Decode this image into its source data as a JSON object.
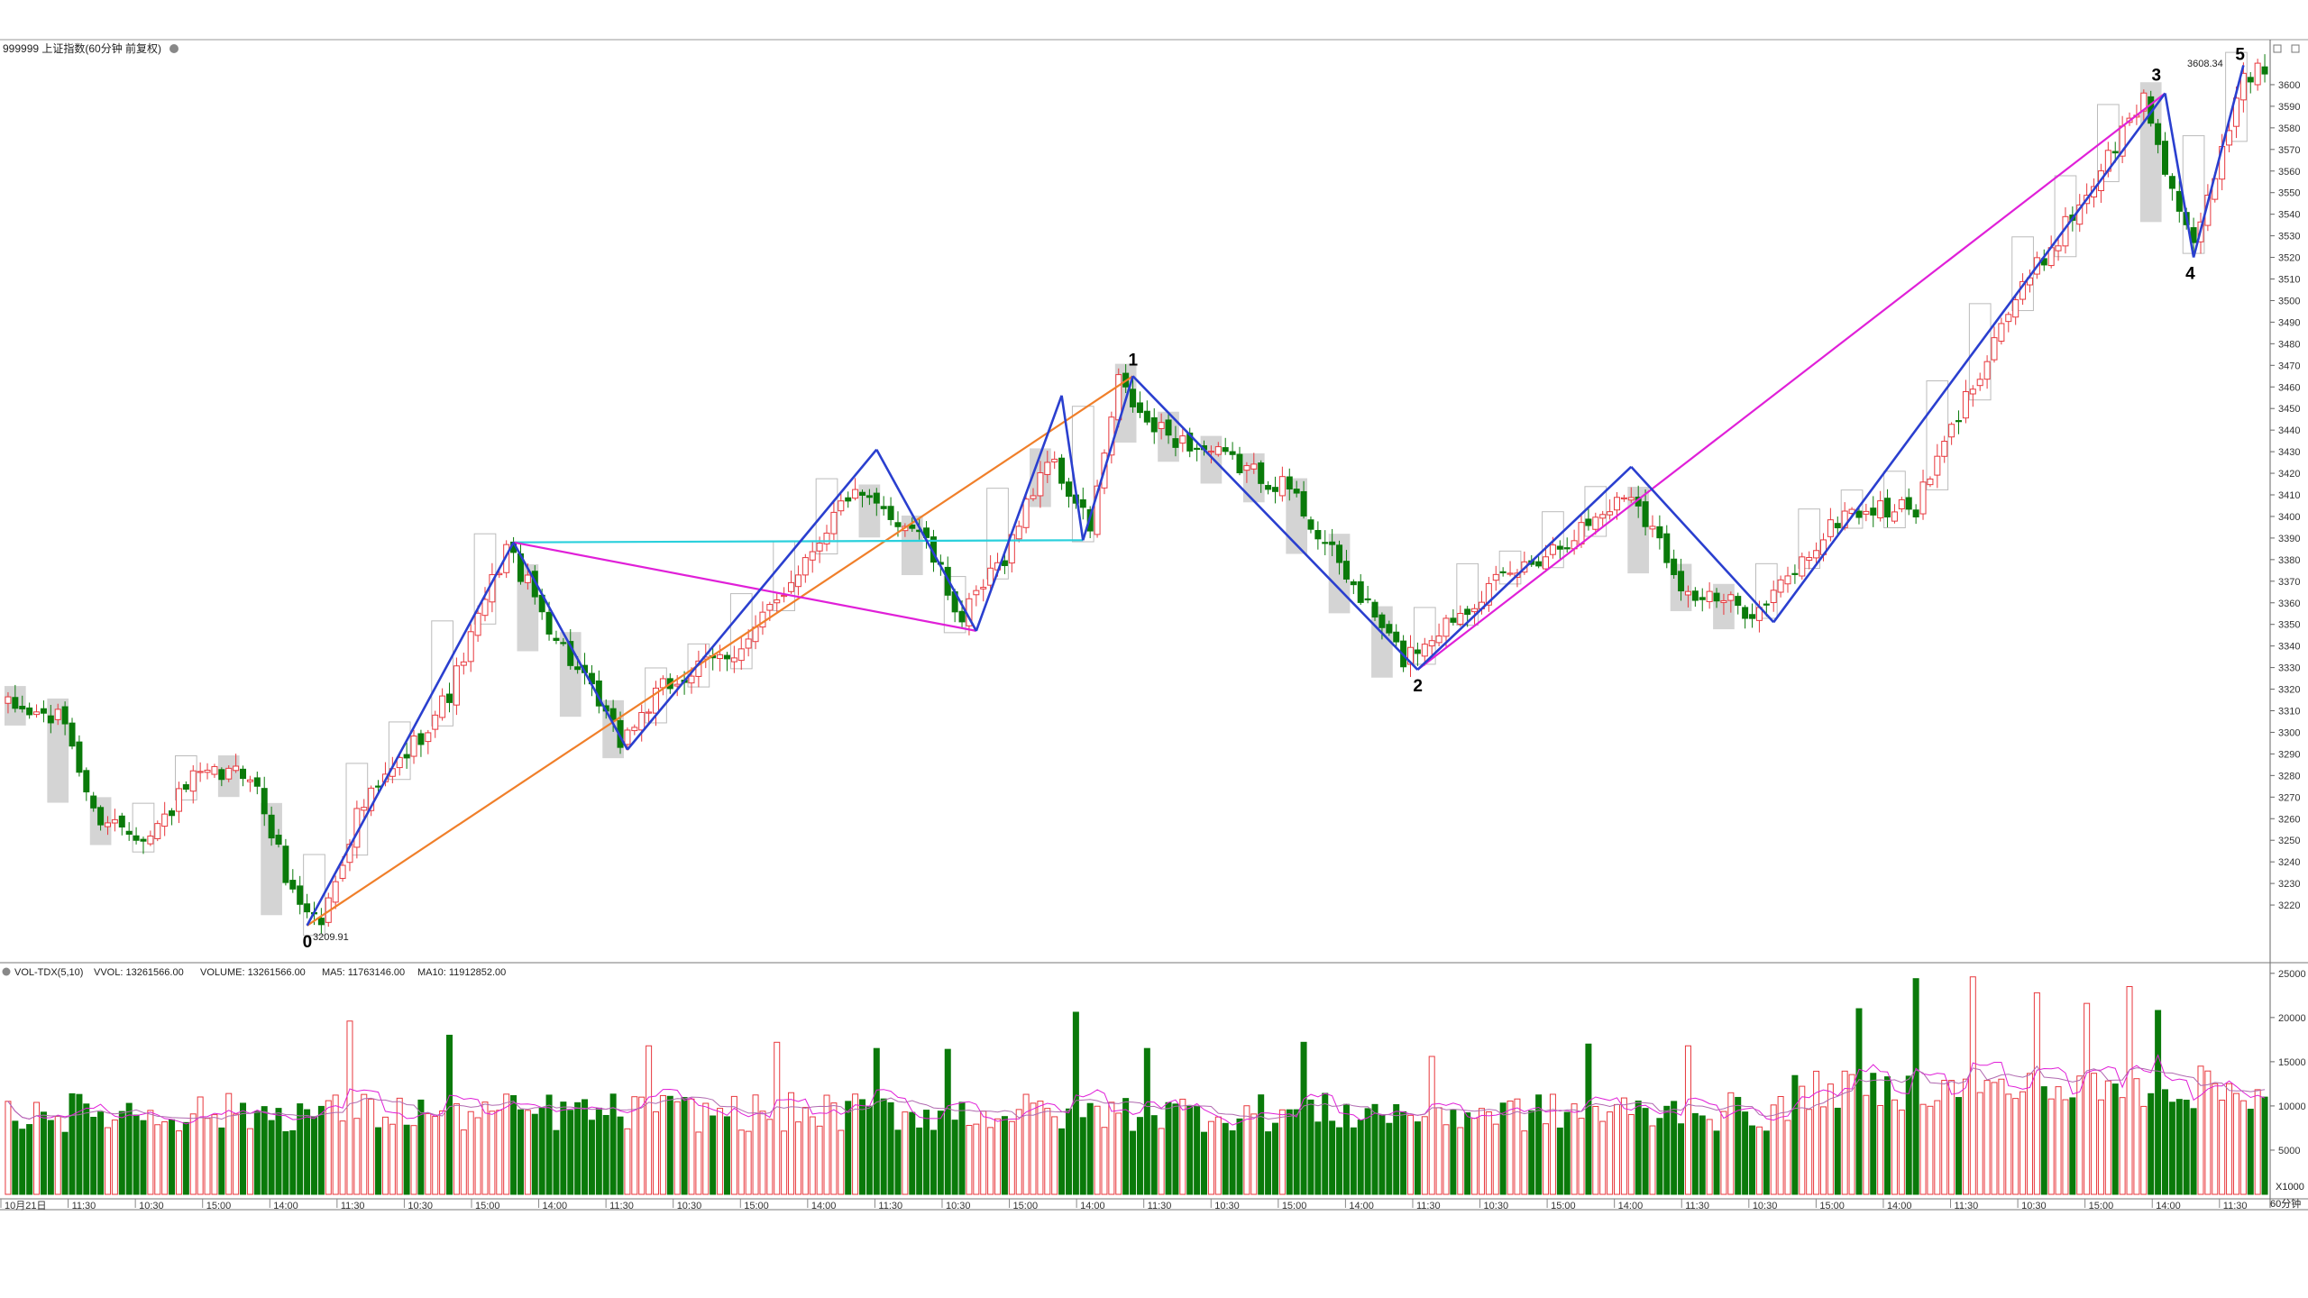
{
  "header": {
    "title": "999999 上证指数(60分钟 前复权)"
  },
  "volume_header": {
    "indicator": "VOL-TDX(5,10)",
    "vvol": "VVOL: 13261566.00",
    "volume": "VOLUME: 13261566.00",
    "ma5": "MA5: 11763146.00",
    "ma10": "MA10: 11912852.00"
  },
  "colors": {
    "up": "#e8383d",
    "down": "#0a7a0a",
    "wave_blue": "#2a3fcf",
    "magenta": "#e020d8",
    "orange": "#f07f2a",
    "cyan": "#2ad0dc",
    "ma5": "#e020d8",
    "ma10": "#b06ab0"
  },
  "chart_data": {
    "type": "candlestick",
    "price_axis": {
      "min": 3210,
      "max": 3610,
      "ticks": [
        3220,
        3230,
        3240,
        3250,
        3260,
        3270,
        3280,
        3290,
        3300,
        3310,
        3320,
        3330,
        3340,
        3350,
        3360,
        3370,
        3380,
        3390,
        3400,
        3410,
        3420,
        3430,
        3440,
        3450,
        3460,
        3470,
        3480,
        3490,
        3500,
        3510,
        3520,
        3530,
        3540,
        3550,
        3560,
        3570,
        3580,
        3590,
        3600
      ]
    },
    "volume_axis": {
      "min": 0,
      "max": 26000,
      "ticks": [
        5000,
        10000,
        15000,
        20000,
        25000
      ],
      "unit_label": "X1000"
    },
    "period_label": "60分钟",
    "x_labels": [
      "10月21日",
      "11:30",
      "10:30",
      "15:00",
      "14:00",
      "11:30",
      "10:30",
      "15:00",
      "14:00",
      "11:30",
      "10:30",
      "15:00",
      "14:00",
      "11:30",
      "10:30",
      "15:00",
      "14:00",
      "11:30",
      "10:30",
      "15:00",
      "14:00",
      "11:30",
      "10:30",
      "15:00",
      "14:00",
      "11:30",
      "10:30",
      "15:00",
      "14:00",
      "11:30",
      "10:30",
      "15:00",
      "14:00",
      "11:30"
    ],
    "anchors": [
      {
        "i": 0,
        "p": 3312
      },
      {
        "i": 8,
        "p": 3305
      },
      {
        "i": 12,
        "p": 3262
      },
      {
        "i": 20,
        "p": 3252
      },
      {
        "i": 26,
        "p": 3278
      },
      {
        "i": 34,
        "p": 3282
      },
      {
        "i": 40,
        "p": 3225
      },
      {
        "i": 44,
        "p": 3212
      },
      {
        "i": 49,
        "p": 3262
      },
      {
        "i": 56,
        "p": 3290
      },
      {
        "i": 62,
        "p": 3318
      },
      {
        "i": 70,
        "p": 3386
      },
      {
        "i": 76,
        "p": 3350
      },
      {
        "i": 86,
        "p": 3296
      },
      {
        "i": 92,
        "p": 3320
      },
      {
        "i": 104,
        "p": 3342
      },
      {
        "i": 118,
        "p": 3410
      },
      {
        "i": 128,
        "p": 3394
      },
      {
        "i": 134,
        "p": 3352
      },
      {
        "i": 140,
        "p": 3382
      },
      {
        "i": 146,
        "p": 3428
      },
      {
        "i": 152,
        "p": 3395
      },
      {
        "i": 156,
        "p": 3462
      },
      {
        "i": 160,
        "p": 3442
      },
      {
        "i": 170,
        "p": 3428
      },
      {
        "i": 180,
        "p": 3413
      },
      {
        "i": 186,
        "p": 3382
      },
      {
        "i": 196,
        "p": 3334
      },
      {
        "i": 206,
        "p": 3362
      },
      {
        "i": 220,
        "p": 3392
      },
      {
        "i": 228,
        "p": 3412
      },
      {
        "i": 236,
        "p": 3364
      },
      {
        "i": 246,
        "p": 3356
      },
      {
        "i": 258,
        "p": 3402
      },
      {
        "i": 268,
        "p": 3404
      },
      {
        "i": 280,
        "p": 3490
      },
      {
        "i": 292,
        "p": 3550
      },
      {
        "i": 300,
        "p": 3594
      },
      {
        "i": 304,
        "p": 3552
      },
      {
        "i": 307,
        "p": 3522
      },
      {
        "i": 314,
        "p": 3606
      }
    ],
    "volume_peaks": [
      {
        "i": 4,
        "v": 10400
      },
      {
        "i": 48,
        "v": 19600
      },
      {
        "i": 62,
        "v": 18000
      },
      {
        "i": 90,
        "v": 16800
      },
      {
        "i": 108,
        "v": 17200
      },
      {
        "i": 122,
        "v": 16500
      },
      {
        "i": 132,
        "v": 16400
      },
      {
        "i": 150,
        "v": 20600
      },
      {
        "i": 160,
        "v": 16500
      },
      {
        "i": 182,
        "v": 17200
      },
      {
        "i": 200,
        "v": 15600
      },
      {
        "i": 222,
        "v": 17000
      },
      {
        "i": 236,
        "v": 16800
      },
      {
        "i": 260,
        "v": 21000
      },
      {
        "i": 268,
        "v": 24400
      },
      {
        "i": 276,
        "v": 24600
      },
      {
        "i": 285,
        "v": 22800
      },
      {
        "i": 292,
        "v": 21600
      },
      {
        "i": 298,
        "v": 23500
      },
      {
        "i": 302,
        "v": 20800
      },
      {
        "i": 308,
        "v": 14500
      }
    ],
    "pivots": [
      {
        "label": "0",
        "i": 42,
        "p": 3210.5
      },
      {
        "label": "",
        "i": 71,
        "p": 3388
      },
      {
        "label": "",
        "i": 87,
        "p": 3292
      },
      {
        "label": "",
        "i": 122,
        "p": 3431
      },
      {
        "label": "",
        "i": 136,
        "p": 3347
      },
      {
        "label": "",
        "i": 148,
        "p": 3456
      },
      {
        "label": "",
        "i": 151,
        "p": 3389
      },
      {
        "label": "1",
        "i": 158,
        "p": 3465
      },
      {
        "label": "2",
        "i": 198,
        "p": 3329
      },
      {
        "label": "",
        "i": 228,
        "p": 3423
      },
      {
        "label": "",
        "i": 248,
        "p": 3351
      },
      {
        "label": "3",
        "i": 303,
        "p": 3596
      },
      {
        "label": "4",
        "i": 307,
        "p": 3520
      },
      {
        "label": "5",
        "i": 314,
        "p": 3609
      }
    ],
    "annotations": {
      "low_label": "3209.91",
      "high_label": "3608.34"
    }
  }
}
